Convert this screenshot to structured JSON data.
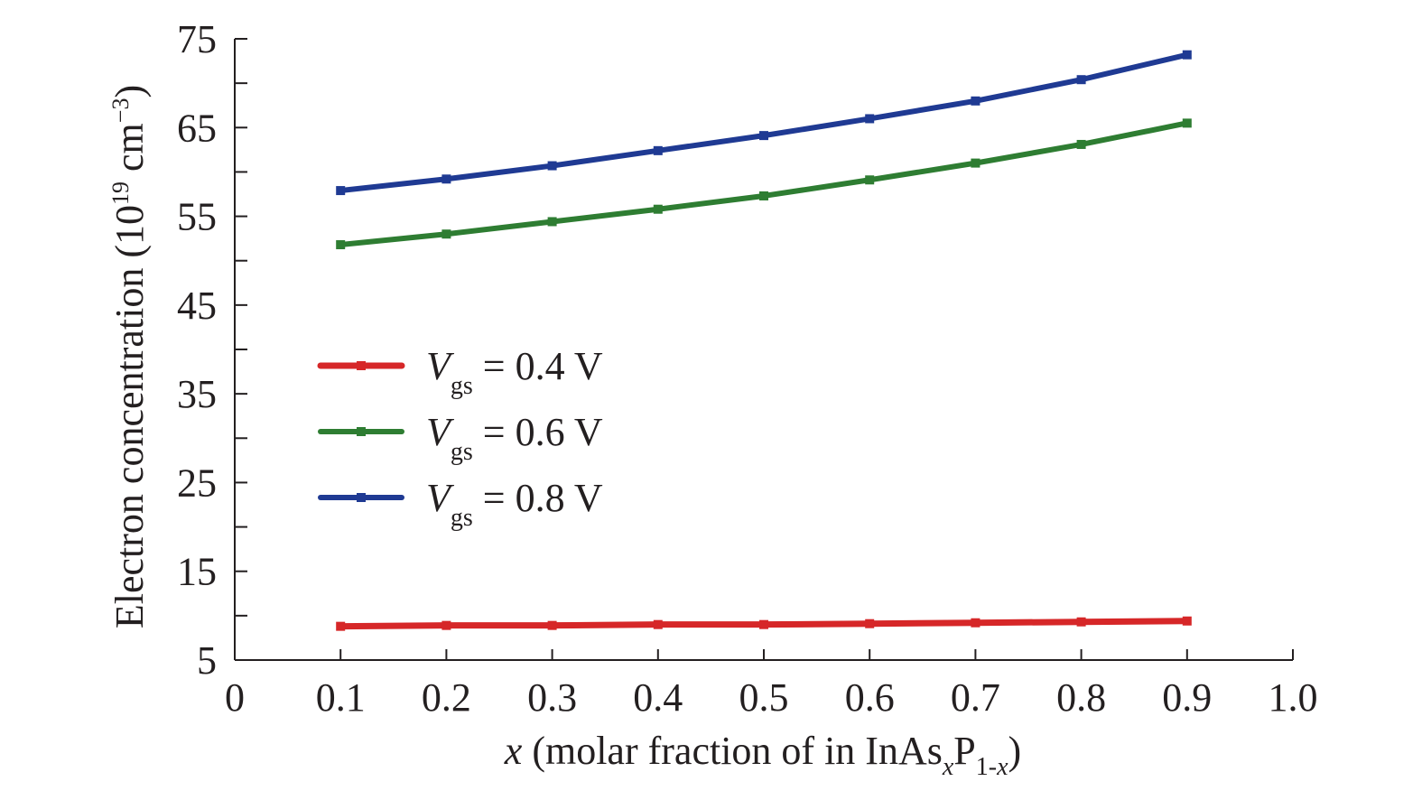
{
  "chart_data": {
    "type": "line",
    "title": "",
    "xlabel": {
      "var": "x",
      "text": " (molar fraction of in InAs",
      "sub1": "x",
      "mid": "P",
      "sub2": "1-",
      "sub3": "x",
      "end": ")"
    },
    "ylabel": {
      "text": "Electron concentration (10",
      "sup1": "19",
      "mid": " cm",
      "sup2": "−3",
      "end": ")"
    },
    "xlim": [
      0,
      1.0
    ],
    "ylim": [
      5,
      75
    ],
    "x_ticks": [
      "0",
      "0.1",
      "0.2",
      "0.3",
      "0.4",
      "0.5",
      "0.6",
      "0.7",
      "0.8",
      "0.9",
      "1.0"
    ],
    "y_ticks": [
      "5",
      "15",
      "25",
      "35",
      "45",
      "55",
      "65",
      "75"
    ],
    "grid": false,
    "legend_position": "center-left",
    "x": [
      0.1,
      0.2,
      0.3,
      0.4,
      0.5,
      0.6,
      0.7,
      0.8,
      0.9
    ],
    "series": [
      {
        "name": "= 0.4 V",
        "name_var": "V",
        "name_sub": "gs",
        "color": "#d62728",
        "values": [
          8.8,
          8.9,
          8.9,
          9.0,
          9.0,
          9.1,
          9.2,
          9.3,
          9.4
        ]
      },
      {
        "name": "= 0.6 V",
        "name_var": "V",
        "name_sub": "gs",
        "color": "#2e7d32",
        "values": [
          51.8,
          53.0,
          54.4,
          55.8,
          57.3,
          59.1,
          61.0,
          63.1,
          65.5
        ]
      },
      {
        "name": "= 0.8 V",
        "name_var": "V",
        "name_sub": "gs",
        "color": "#1f3a93",
        "values": [
          57.9,
          59.2,
          60.7,
          62.4,
          64.1,
          66.0,
          68.0,
          70.4,
          73.2
        ]
      }
    ]
  }
}
